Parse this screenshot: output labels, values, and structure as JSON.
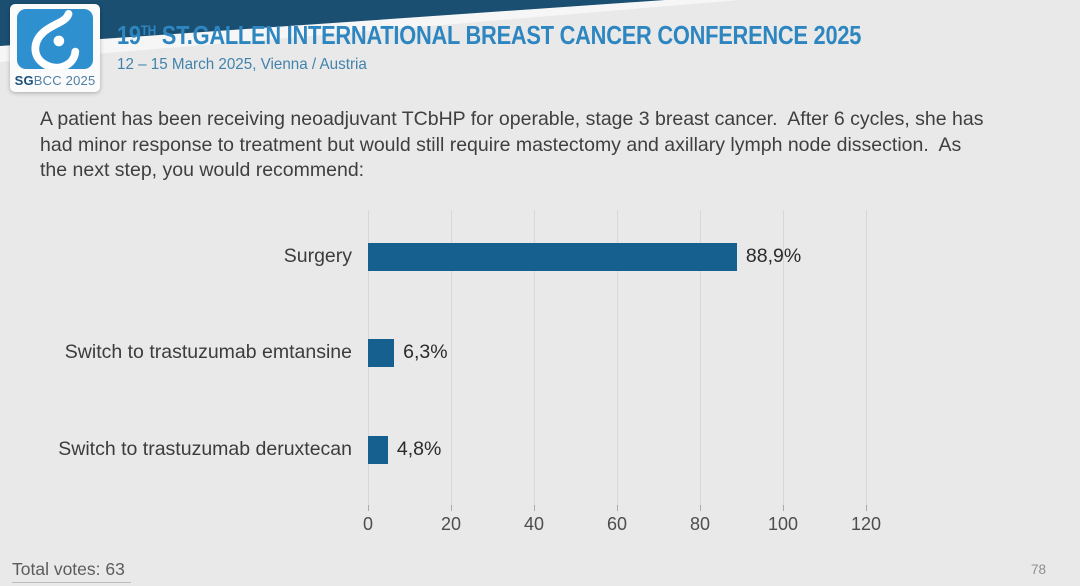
{
  "slide": {
    "background_color": "#e9e9e9",
    "ribbon_navy": "#1a4f72",
    "ribbon_white": "#f6f6f6"
  },
  "header": {
    "logo": {
      "icon": "sgbcc-breast-logo",
      "label_bold": "SG",
      "label_rest": "BCC 2025",
      "tile_color": "#2e90cf"
    },
    "title_prefix": "19",
    "title_superscript": "TH",
    "title_main": " ST.GALLEN INTERNATIONAL BREAST CANCER CONFERENCE 2025",
    "subtitle": "12 – 15 March 2025, Vienna / Austria",
    "title_color": "#2e86c0"
  },
  "question": {
    "text": "A patient has been receiving neoadjuvant TCbHP for operable, stage 3 breast cancer.  After 6 cycles, she has had minor response to treatment but would still require mastectomy and axillary lymph node dissection.  As the next step, you would recommend:"
  },
  "chart_data": {
    "type": "bar",
    "orientation": "horizontal",
    "categories": [
      "Surgery",
      "Switch to trastuzumab emtansine",
      "Switch to trastuzumab deruxtecan"
    ],
    "values": [
      88.9,
      6.3,
      4.8
    ],
    "value_labels": [
      "88,9%",
      "6,3%",
      "4,8%"
    ],
    "x_ticks": [
      "0",
      "20",
      "40",
      "60",
      "80",
      "100",
      "120"
    ],
    "xlim": [
      0,
      120
    ],
    "bar_color": "#16608f",
    "grid": true,
    "legend_position": "none",
    "title": ""
  },
  "footer": {
    "total_votes": "Total votes: 63",
    "page_number": "78"
  }
}
